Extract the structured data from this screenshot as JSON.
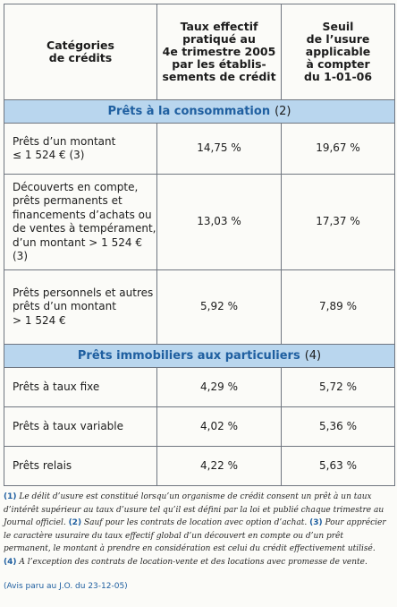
{
  "headers": {
    "categories": "Catégories\nde crédits",
    "taux_effectif": "Taux effectif\npratiqué au\n4e trimestre 2005\npar les établis-\nsements de crédit",
    "seuil": "Seuil\nde l’usure\napplicable\nà compter\ndu 1-01-06"
  },
  "sections": [
    {
      "title": "Prêts à la consommation",
      "note": "(2)",
      "rows": [
        {
          "label": "Prêts d’un montant\n≤ 1 524 € (3)",
          "taux": "14,75 %",
          "seuil": "19,67 %"
        },
        {
          "label": "Découverts en compte,\nprêts permanents et\nfinancements d’achats ou\nde ventes à tempérament,\nd’un montant > 1 524 € (3)",
          "taux": "13,03 %",
          "seuil": "17,37 %"
        },
        {
          "label": "Prêts personnels et autres\nprêts d’un montant\n> 1 524 €",
          "taux": "5,92 %",
          "seuil": "7,89 %"
        }
      ]
    },
    {
      "title": "Prêts immobiliers aux particuliers",
      "note": "(4)",
      "rows": [
        {
          "label": "Prêts à taux fixe",
          "taux": "4,29 %",
          "seuil": "5,72 %"
        },
        {
          "label": "Prêts à taux variable",
          "taux": "4,02 %",
          "seuil": "5,36 %"
        },
        {
          "label": "Prêts relais",
          "taux": "4,22 %",
          "seuil": "5,63 %"
        }
      ]
    }
  ],
  "footnotes": [
    {
      "n": "(1)",
      "text": "Le délit d’usure est constitué lorsqu’un organisme de crédit consent un prêt à un taux d’intérêt supérieur au taux d’usure tel qu’il est défini par la loi et publié chaque trimestre au Journal officiel."
    },
    {
      "n": "(2)",
      "text": "Sauf pour les contrats de location avec option d’achat."
    },
    {
      "n": "(3)",
      "text": "Pour apprécier le caractère usuraire du taux effectif global d’un découvert en compte ou d’un prêt permanent, le montant à prendre en considération est celui du crédit effectivement utilisé."
    },
    {
      "n": "(4)",
      "text": "A l’exception des contrats de location-vente et des locations avec promesse de vente."
    }
  ],
  "source": "(Avis paru au J.O. du 23-12-05)"
}
